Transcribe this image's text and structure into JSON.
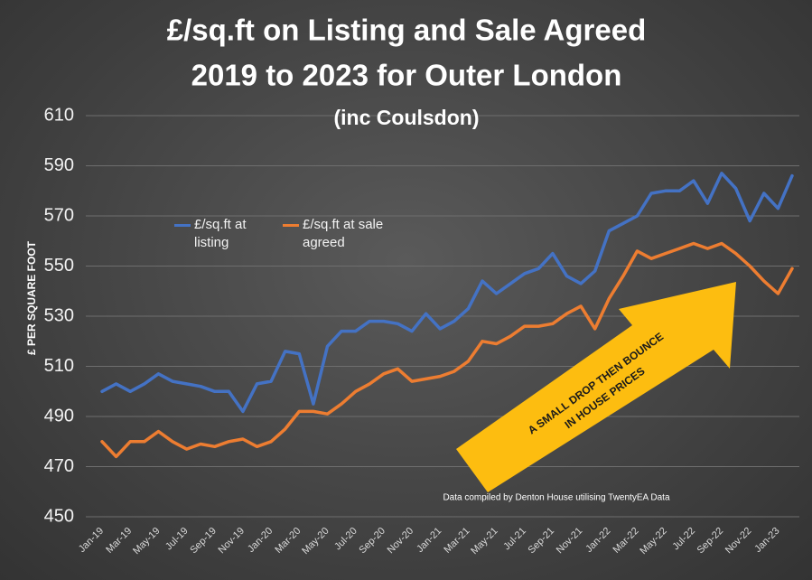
{
  "chart_data": {
    "type": "line",
    "title": [
      "£/sq.ft on Listing and Sale Agreed",
      "2019 to 2023 for Outer London"
    ],
    "subtitle": "(inc Coulsdon)",
    "y_label": "£ PER SQUARE FOOT",
    "annotation": [
      "A SMALL DROP THEN BOUNCE",
      "IN HOUSE PRICES"
    ],
    "source": "Data compiled by Denton House utilising TwentyEA Data",
    "categories": [
      "Jan-19",
      null,
      "Mar-19",
      null,
      "May-19",
      null,
      "Jul-19",
      null,
      "Sep-19",
      null,
      "Nov-19",
      null,
      "Jan-20",
      null,
      "Mar-20",
      null,
      "May-20",
      null,
      "Jul-20",
      null,
      "Sep-20",
      null,
      "Nov-20",
      null,
      "Jan-21",
      null,
      "Mar-21",
      null,
      "May-21",
      null,
      "Jul-21",
      null,
      "Sep-21",
      null,
      "Nov-21",
      null,
      "Jan-22",
      null,
      "Mar-22",
      null,
      "May-22",
      null,
      "Jul-22",
      null,
      "Sep-22",
      null,
      "Nov-22",
      null,
      "Jan-23",
      null
    ],
    "series": [
      {
        "name": "£/sq.ft at listing",
        "color": "#4472c4",
        "values": [
          500,
          503,
          500,
          503,
          507,
          504,
          503,
          502,
          500,
          500,
          492,
          503,
          504,
          516,
          515,
          495,
          518,
          524,
          524,
          528,
          528,
          527,
          524,
          531,
          525,
          528,
          533,
          544,
          539,
          543,
          547,
          549,
          555,
          546,
          543,
          548,
          564,
          567,
          570,
          579,
          580,
          580,
          584,
          575,
          587,
          581,
          568,
          579,
          573,
          586
        ]
      },
      {
        "name": "£/sq.ft at sale agreed",
        "color": "#ed7d31",
        "values": [
          480,
          474,
          480,
          480,
          484,
          480,
          477,
          479,
          478,
          480,
          481,
          478,
          480,
          485,
          492,
          492,
          491,
          495,
          500,
          503,
          507,
          509,
          504,
          505,
          506,
          508,
          512,
          520,
          519,
          522,
          526,
          526,
          527,
          531,
          534,
          525,
          537,
          546,
          556,
          553,
          555,
          557,
          559,
          557,
          559,
          555,
          550,
          544,
          539,
          549
        ]
      }
    ],
    "ylim": [
      450,
      610
    ],
    "yticks": [
      450,
      470,
      490,
      510,
      530,
      550,
      570,
      590,
      610
    ],
    "grid": true
  }
}
